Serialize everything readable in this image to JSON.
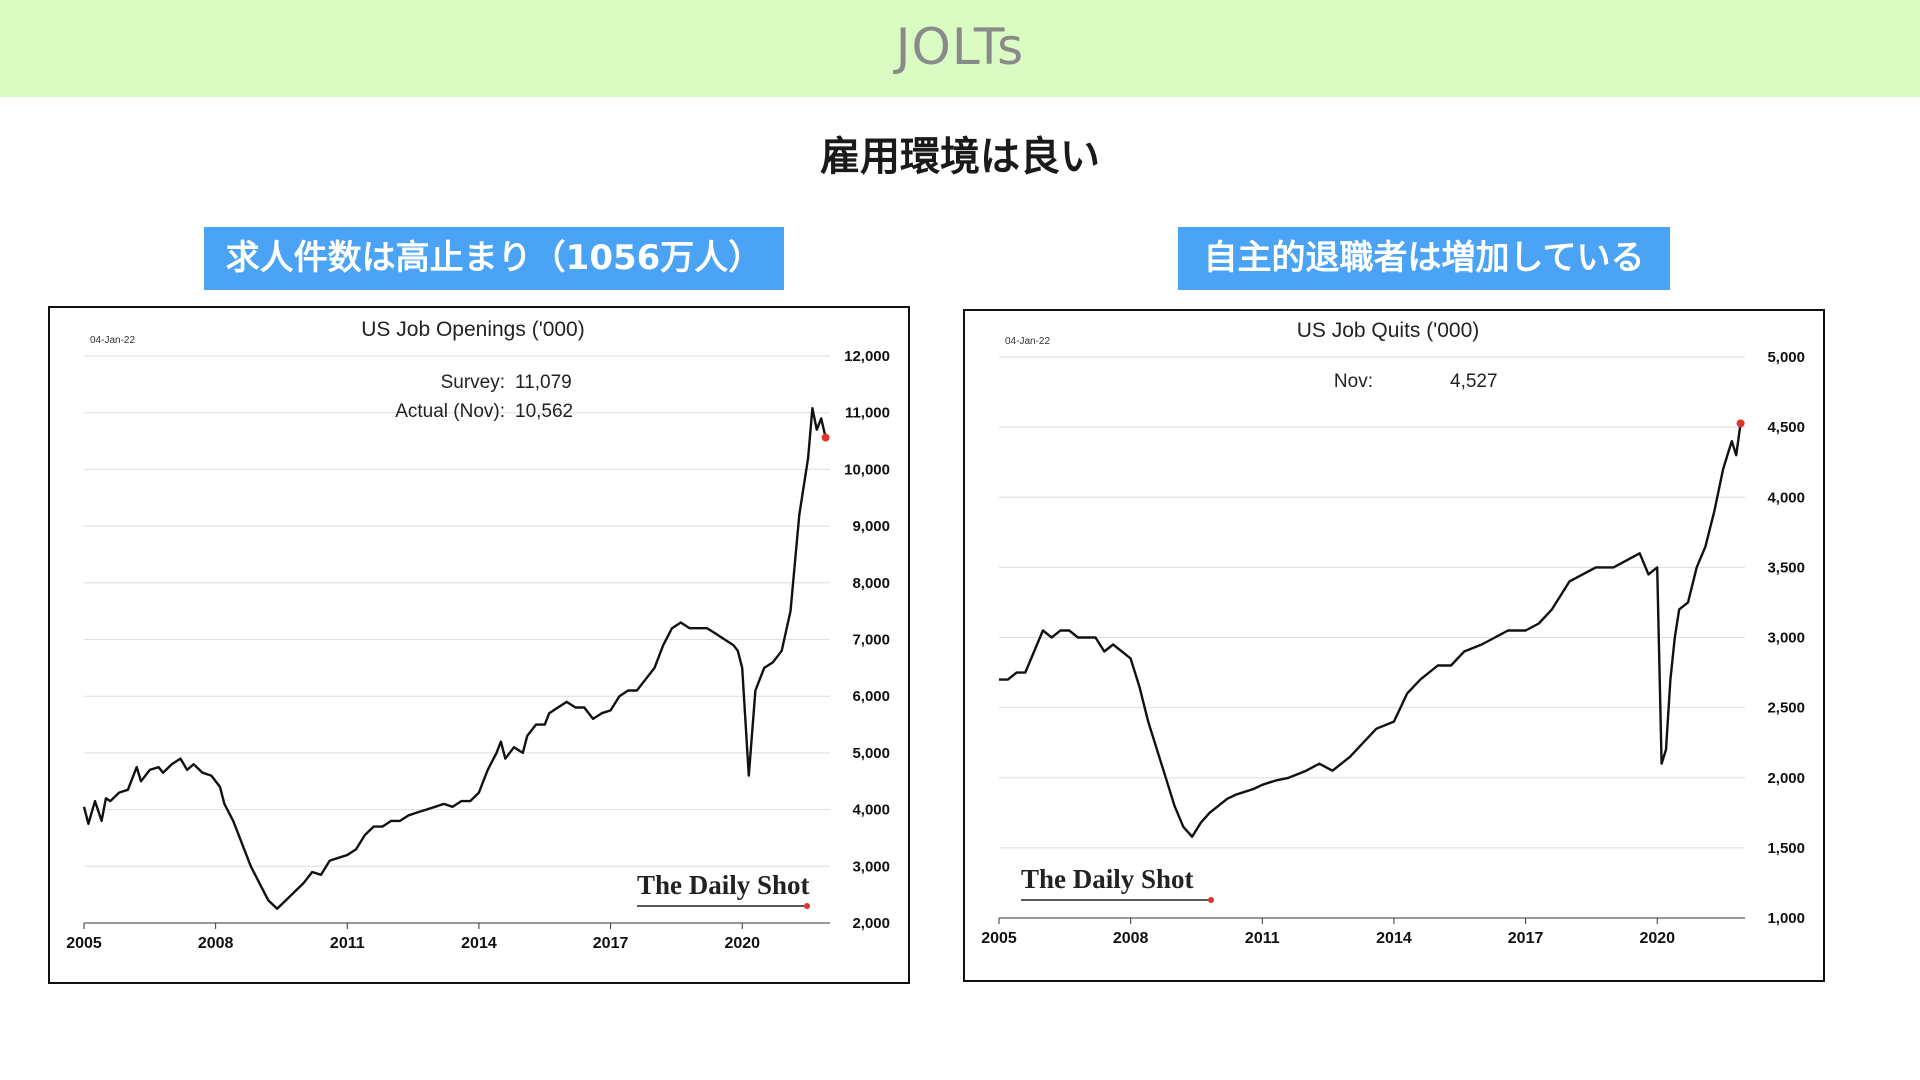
{
  "header": {
    "title": "JOLTs"
  },
  "subtitle": "雇用環境は良い",
  "captions": {
    "left": "求人件数は高止まり（1056万人）",
    "right": "自主的退職者は増加している"
  },
  "colors": {
    "header_band": "#dafbc2",
    "caption_bg": "#4aa3f4",
    "line": "#111111",
    "last_point": "#e0352b"
  },
  "chart_data": [
    {
      "type": "line",
      "title": "US Job Openings ('000)",
      "date_stamp": "04-Jan-22",
      "annotations": [
        {
          "label": "Survey:",
          "value": "11,079"
        },
        {
          "label": "Actual (Nov):",
          "value": "10,562"
        }
      ],
      "watermark": "The Daily Shot",
      "ylim": [
        2000,
        12000
      ],
      "y_axis_position": "right",
      "grid": true,
      "xlim": [
        2005.0,
        2022.0
      ],
      "x_ticks": [
        "2005",
        "2008",
        "2011",
        "2014",
        "2017",
        "2020"
      ],
      "y_ticks": [
        "2,000",
        "3,000",
        "4,000",
        "5,000",
        "6,000",
        "7,000",
        "8,000",
        "9,000",
        "10,000",
        "11,000",
        "12,000"
      ],
      "series": [
        {
          "x": [
            2005.0,
            2005.1,
            2005.25,
            2005.4,
            2005.5,
            2005.6,
            2005.8,
            2006.0,
            2006.2,
            2006.3,
            2006.5,
            2006.7,
            2006.8,
            2007.0,
            2007.2,
            2007.35,
            2007.5,
            2007.7,
            2007.9,
            2008.1,
            2008.2,
            2008.4,
            2008.6,
            2008.8,
            2009.0,
            2009.2,
            2009.4,
            2009.6,
            2009.8,
            2010.0,
            2010.2,
            2010.4,
            2010.6,
            2010.8,
            2011.0,
            2011.2,
            2011.4,
            2011.6,
            2011.8,
            2012.0,
            2012.2,
            2012.4,
            2012.6,
            2012.8,
            2013.0,
            2013.2,
            2013.4,
            2013.6,
            2013.8,
            2014.0,
            2014.2,
            2014.4,
            2014.5,
            2014.6,
            2014.8,
            2015.0,
            2015.1,
            2015.3,
            2015.5,
            2015.6,
            2015.8,
            2016.0,
            2016.2,
            2016.4,
            2016.6,
            2016.8,
            2017.0,
            2017.2,
            2017.4,
            2017.6,
            2017.8,
            2018.0,
            2018.2,
            2018.4,
            2018.6,
            2018.8,
            2019.0,
            2019.2,
            2019.4,
            2019.6,
            2019.8,
            2019.9,
            2020.0,
            2020.15,
            2020.3,
            2020.5,
            2020.7,
            2020.9,
            2021.1,
            2021.3,
            2021.5,
            2021.6,
            2021.7,
            2021.8,
            2021.9
          ],
          "y": [
            4050,
            3750,
            4150,
            3800,
            4200,
            4150,
            4300,
            4350,
            4750,
            4500,
            4700,
            4750,
            4650,
            4800,
            4900,
            4700,
            4800,
            4650,
            4600,
            4400,
            4100,
            3800,
            3400,
            3000,
            2700,
            2400,
            2250,
            2400,
            2550,
            2700,
            2900,
            2850,
            3100,
            3150,
            3200,
            3300,
            3550,
            3700,
            3700,
            3800,
            3800,
            3900,
            3950,
            4000,
            4050,
            4100,
            4050,
            4150,
            4150,
            4300,
            4700,
            5000,
            5200,
            4900,
            5100,
            5000,
            5300,
            5500,
            5500,
            5700,
            5800,
            5900,
            5800,
            5800,
            5600,
            5700,
            5750,
            6000,
            6100,
            6100,
            6300,
            6500,
            6900,
            7200,
            7300,
            7200,
            7200,
            7200,
            7100,
            7000,
            6900,
            6800,
            6500,
            4600,
            6100,
            6500,
            6600,
            6800,
            7500,
            9200,
            10200,
            11079,
            10700,
            10900,
            10562
          ]
        }
      ]
    },
    {
      "type": "line",
      "title": "US Job Quits ('000)",
      "date_stamp": "04-Jan-22",
      "annotations": [
        {
          "label": "Nov:",
          "value": "4,527"
        }
      ],
      "watermark": "The Daily Shot",
      "ylim": [
        1000,
        5000
      ],
      "y_axis_position": "right",
      "grid": true,
      "xlim": [
        2005.0,
        2022.0
      ],
      "x_ticks": [
        "2005",
        "2008",
        "2011",
        "2014",
        "2017",
        "2020"
      ],
      "y_ticks": [
        "1,000",
        "1,500",
        "2,000",
        "2,500",
        "3,000",
        "3,500",
        "4,000",
        "4,500",
        "5,000"
      ],
      "series": [
        {
          "x": [
            2005.0,
            2005.2,
            2005.4,
            2005.6,
            2005.8,
            2006.0,
            2006.2,
            2006.4,
            2006.6,
            2006.8,
            2007.0,
            2007.2,
            2007.4,
            2007.6,
            2007.8,
            2008.0,
            2008.2,
            2008.4,
            2008.6,
            2008.8,
            2009.0,
            2009.2,
            2009.4,
            2009.6,
            2009.8,
            2010.0,
            2010.2,
            2010.4,
            2010.6,
            2010.8,
            2011.0,
            2011.3,
            2011.6,
            2012.0,
            2012.3,
            2012.6,
            2013.0,
            2013.3,
            2013.6,
            2014.0,
            2014.3,
            2014.6,
            2015.0,
            2015.3,
            2015.6,
            2016.0,
            2016.3,
            2016.6,
            2017.0,
            2017.3,
            2017.6,
            2018.0,
            2018.3,
            2018.6,
            2019.0,
            2019.3,
            2019.6,
            2019.8,
            2020.0,
            2020.1,
            2020.2,
            2020.3,
            2020.4,
            2020.5,
            2020.7,
            2020.9,
            2021.1,
            2021.3,
            2021.5,
            2021.6,
            2021.7,
            2021.8,
            2021.9
          ],
          "y": [
            2700,
            2700,
            2750,
            2750,
            2900,
            3050,
            3000,
            3050,
            3050,
            3000,
            3000,
            3000,
            2900,
            2950,
            2900,
            2850,
            2650,
            2400,
            2200,
            2000,
            1800,
            1650,
            1580,
            1680,
            1750,
            1800,
            1850,
            1880,
            1900,
            1920,
            1950,
            1980,
            2000,
            2050,
            2100,
            2050,
            2150,
            2250,
            2350,
            2400,
            2600,
            2700,
            2800,
            2800,
            2900,
            2950,
            3000,
            3050,
            3050,
            3100,
            3200,
            3400,
            3450,
            3500,
            3500,
            3550,
            3600,
            3450,
            3500,
            2100,
            2200,
            2700,
            3000,
            3200,
            3250,
            3500,
            3650,
            3900,
            4200,
            4300,
            4400,
            4300,
            4527
          ]
        }
      ]
    }
  ]
}
